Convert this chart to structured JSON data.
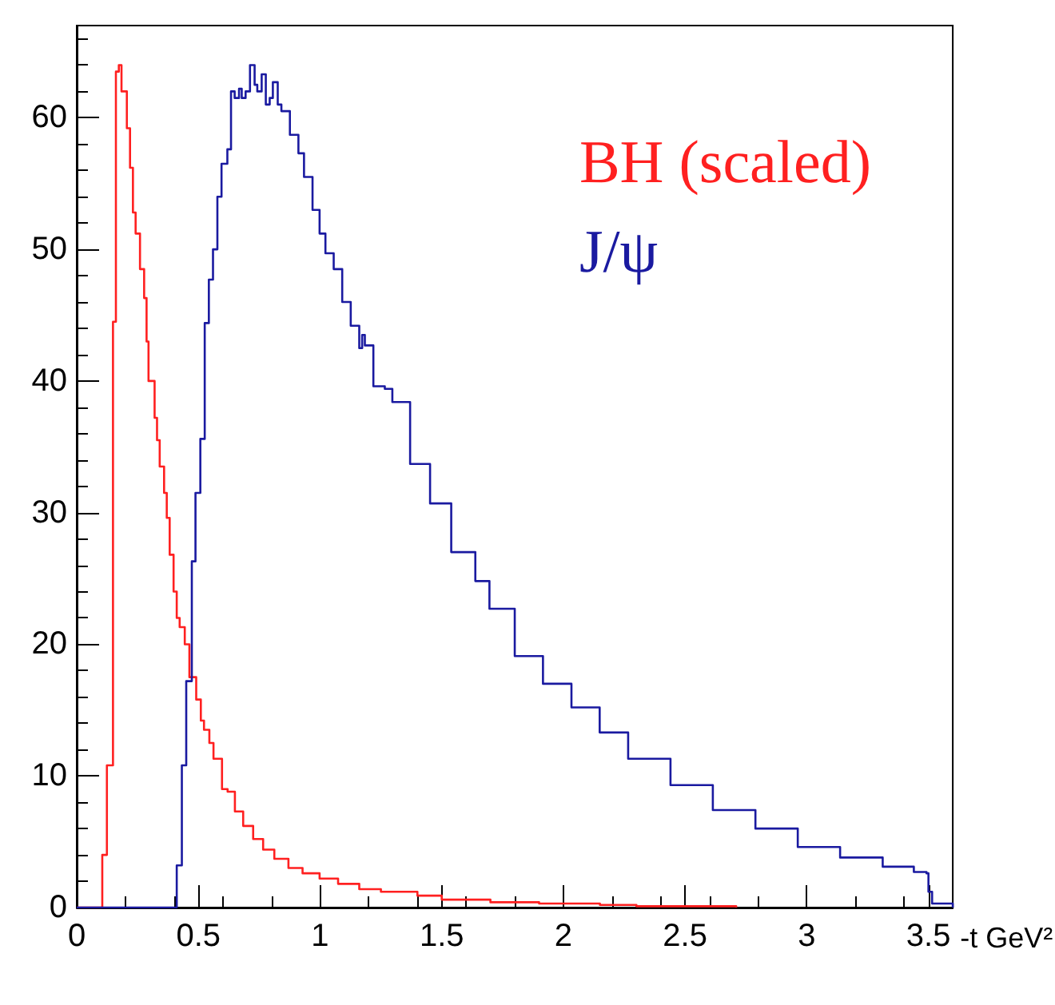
{
  "chart_data": {
    "type": "step",
    "xlabel": "-t GeV²",
    "xlim": [
      0,
      3.6
    ],
    "ylim": [
      0,
      67
    ],
    "xticks": [
      0,
      0.5,
      1,
      1.5,
      2,
      2.5,
      3,
      3.5
    ],
    "yticks": [
      0,
      10,
      20,
      30,
      40,
      50,
      60
    ],
    "grid": false,
    "legend": "top right",
    "series": [
      {
        "name": "BH (scaled)",
        "color": "#ff2020",
        "x": [
          0,
          0.105,
          0.124,
          0.149,
          0.161,
          0.173,
          0.184,
          0.206,
          0.219,
          0.231,
          0.242,
          0.26,
          0.277,
          0.287,
          0.295,
          0.32,
          0.33,
          0.341,
          0.359,
          0.37,
          0.382,
          0.398,
          0.411,
          0.423,
          0.444,
          0.463,
          0.491,
          0.51,
          0.523,
          0.545,
          0.562,
          0.597,
          0.62,
          0.65,
          0.684,
          0.725,
          0.766,
          0.812,
          0.87,
          0.928,
          0.998,
          1.074,
          1.161,
          1.25,
          1.4,
          1.5,
          1.7,
          1.9,
          2.15,
          2.3,
          2.71
        ],
        "values": [
          0,
          4,
          10.8,
          44.5,
          63.5,
          64,
          62,
          59.2,
          56.2,
          52.8,
          51.2,
          48.5,
          46.3,
          43,
          40,
          37.2,
          35.5,
          33.5,
          31.5,
          29.6,
          26.8,
          24,
          22,
          21.3,
          20,
          17.5,
          15.8,
          14.2,
          13.5,
          12.5,
          11.3,
          9,
          8.8,
          7.3,
          6.2,
          5.2,
          4.4,
          3.7,
          3,
          2.6,
          2.2,
          1.8,
          1.4,
          1.2,
          0.9,
          0.6,
          0.4,
          0.3,
          0.2,
          0.1,
          0
        ]
      },
      {
        "name": "J/ψ",
        "color": "#1a1aa0",
        "x": [
          0,
          0.411,
          0.432,
          0.45,
          0.473,
          0.488,
          0.508,
          0.526,
          0.543,
          0.56,
          0.578,
          0.595,
          0.619,
          0.634,
          0.649,
          0.667,
          0.678,
          0.694,
          0.712,
          0.731,
          0.742,
          0.76,
          0.777,
          0.793,
          0.806,
          0.826,
          0.841,
          0.876,
          0.911,
          0.934,
          0.969,
          0.998,
          1.022,
          1.056,
          1.091,
          1.126,
          1.161,
          1.173,
          1.184,
          1.219,
          1.266,
          1.297,
          1.37,
          1.452,
          1.539,
          1.638,
          1.696,
          1.8,
          1.916,
          2.033,
          2.149,
          2.266,
          2.44,
          2.614,
          2.789,
          2.963,
          3.137,
          3.312,
          3.44,
          3.492,
          3.5,
          3.515,
          3.6
        ],
        "values": [
          0,
          3.2,
          10.8,
          17.2,
          26.3,
          31.5,
          35.6,
          44.4,
          47.7,
          50,
          54,
          56.5,
          57.6,
          62,
          61.5,
          62.2,
          61.5,
          62,
          64,
          62.5,
          62,
          63.3,
          61,
          61.5,
          62.7,
          61,
          60.5,
          58.7,
          57.3,
          55.5,
          53,
          51.2,
          49.7,
          48.5,
          46,
          44.2,
          42.5,
          43.5,
          42.7,
          39.6,
          39.4,
          38.4,
          33.7,
          30.7,
          27,
          24.8,
          22.7,
          19.1,
          17,
          15.2,
          13.3,
          11.3,
          9.3,
          7.4,
          6,
          4.6,
          3.8,
          3.1,
          2.7,
          2.6,
          1.2,
          0.3,
          0
        ]
      }
    ]
  }
}
